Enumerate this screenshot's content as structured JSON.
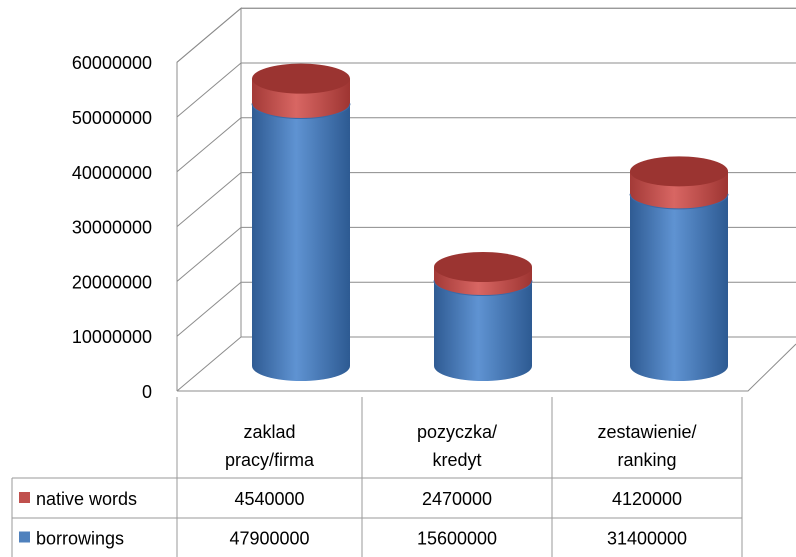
{
  "chart_data": {
    "type": "bar",
    "variant": "3d-stacked-cylinder-with-data-table",
    "categories": [
      "zaklad pracy/firma",
      "pozyczka/ kredyt",
      "zestawienie/ ranking"
    ],
    "category_lines": [
      [
        "zaklad",
        "pracy/firma"
      ],
      [
        "pozyczka/",
        "kredyt"
      ],
      [
        "zestawienie/",
        "ranking"
      ]
    ],
    "series": [
      {
        "name": "native words",
        "color": "#c0504d",
        "values": [
          4540000,
          2470000,
          4120000
        ]
      },
      {
        "name": "borrowings",
        "color": "#4f81bd",
        "values": [
          47900000,
          15600000,
          31400000
        ]
      }
    ],
    "stack_order_bottom_to_top": [
      "borrowings",
      "native words"
    ],
    "yticks": [
      0,
      10000000,
      20000000,
      30000000,
      40000000,
      50000000,
      60000000
    ],
    "ylim": [
      0,
      60000000
    ],
    "grid": true,
    "legend": "data-table",
    "table_rows": [
      {
        "name": "native words",
        "color": "#c0504d",
        "cells": [
          "4540000",
          "2470000",
          "4120000"
        ]
      },
      {
        "name": "borrowings",
        "color": "#4f81bd",
        "cells": [
          "47900000",
          "15600000",
          "31400000"
        ]
      }
    ]
  }
}
